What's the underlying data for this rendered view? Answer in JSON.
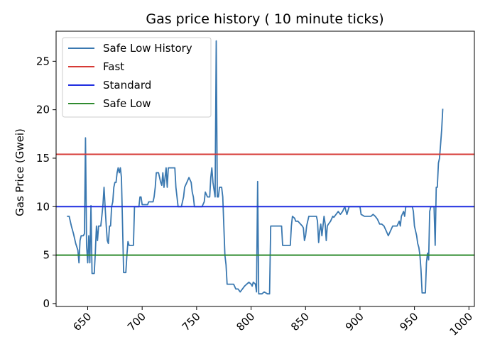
{
  "chart_data": {
    "type": "line",
    "title": "Gas price history ( 10 minute ticks)",
    "xlabel": "",
    "ylabel": "Gas Price (Gwei)",
    "xlim": [
      621,
      1005
    ],
    "ylim": [
      -0.3,
      28.1
    ],
    "xticks": [
      650,
      700,
      750,
      800,
      850,
      900,
      950,
      1000
    ],
    "yticks": [
      0,
      5,
      10,
      15,
      20,
      25
    ],
    "grid": false,
    "legend_position": "top-left",
    "colors": {
      "history": "#3a78b0",
      "fast": "#d63a35",
      "standard": "#1f2ee0",
      "safe_low": "#2f8b2f"
    },
    "series": [
      {
        "name": "Safe Low History",
        "kind": "line",
        "points": [
          [
            631,
            9
          ],
          [
            633,
            9
          ],
          [
            635,
            8
          ],
          [
            637,
            7.2
          ],
          [
            639,
            6.2
          ],
          [
            641,
            5.5
          ],
          [
            642,
            4.2
          ],
          [
            643,
            6.5
          ],
          [
            644,
            7
          ],
          [
            646,
            7
          ],
          [
            647,
            7.2
          ],
          [
            648,
            17.1
          ],
          [
            649,
            6
          ],
          [
            650,
            4.2
          ],
          [
            651,
            7
          ],
          [
            652,
            4.2
          ],
          [
            653,
            10.1
          ],
          [
            654,
            3.1
          ],
          [
            656,
            3.1
          ],
          [
            657,
            5.2
          ],
          [
            658,
            8
          ],
          [
            659,
            6.5
          ],
          [
            660,
            8
          ],
          [
            662,
            8
          ],
          [
            663,
            9
          ],
          [
            664,
            10.2
          ],
          [
            665,
            12
          ],
          [
            666,
            10
          ],
          [
            667,
            8
          ],
          [
            668,
            6.5
          ],
          [
            669,
            6.2
          ],
          [
            670,
            8
          ],
          [
            671,
            8
          ],
          [
            672,
            10
          ],
          [
            673,
            10.5
          ],
          [
            674,
            12
          ],
          [
            675,
            12.5
          ],
          [
            676,
            12.5
          ],
          [
            677,
            13.5
          ],
          [
            678,
            14
          ],
          [
            679,
            13.5
          ],
          [
            680,
            14
          ],
          [
            681,
            13
          ],
          [
            682,
            8
          ],
          [
            683,
            3.2
          ],
          [
            685,
            3.2
          ],
          [
            686,
            5
          ],
          [
            687,
            6.4
          ],
          [
            688,
            6
          ],
          [
            690,
            6
          ],
          [
            692,
            6
          ],
          [
            693,
            10
          ],
          [
            697,
            10
          ],
          [
            698,
            11
          ],
          [
            699,
            11
          ],
          [
            700,
            10.2
          ],
          [
            705,
            10.2
          ],
          [
            706,
            10.5
          ],
          [
            710,
            10.5
          ],
          [
            711,
            11
          ],
          [
            712,
            12
          ],
          [
            713,
            13.5
          ],
          [
            715,
            13.5
          ],
          [
            717,
            12.5
          ],
          [
            718,
            12.2
          ],
          [
            719,
            13.5
          ],
          [
            720,
            12
          ],
          [
            721,
            13
          ],
          [
            722,
            14
          ],
          [
            723,
            12
          ],
          [
            724,
            14
          ],
          [
            730,
            14
          ],
          [
            731,
            12
          ],
          [
            733,
            10
          ],
          [
            736,
            10
          ],
          [
            738,
            11
          ],
          [
            739,
            12
          ],
          [
            741,
            12.5
          ],
          [
            743,
            13
          ],
          [
            745,
            12.5
          ],
          [
            746,
            11.5
          ],
          [
            747,
            11
          ],
          [
            748,
            10
          ],
          [
            755,
            10
          ],
          [
            757,
            10.5
          ],
          [
            758,
            11.5
          ],
          [
            760,
            11
          ],
          [
            762,
            11
          ],
          [
            763,
            13
          ],
          [
            764,
            14
          ],
          [
            765,
            12.5
          ],
          [
            767,
            11
          ],
          [
            768,
            27.1
          ],
          [
            769,
            11
          ],
          [
            770,
            11
          ],
          [
            771,
            12
          ],
          [
            773,
            12
          ],
          [
            774,
            11
          ],
          [
            775,
            8
          ],
          [
            776,
            5
          ],
          [
            777,
            4
          ],
          [
            778,
            2
          ],
          [
            780,
            2
          ],
          [
            782,
            2
          ],
          [
            784,
            2
          ],
          [
            786,
            1.5
          ],
          [
            788,
            1.5
          ],
          [
            790,
            1.2
          ],
          [
            792,
            1.5
          ],
          [
            794,
            1.8
          ],
          [
            796,
            2
          ],
          [
            798,
            2.2
          ],
          [
            800,
            2
          ],
          [
            801,
            1.8
          ],
          [
            802,
            2.2
          ],
          [
            804,
            2
          ],
          [
            805,
            1.2
          ],
          [
            806,
            12.6
          ],
          [
            807,
            1
          ],
          [
            810,
            1
          ],
          [
            812,
            1.2
          ],
          [
            815,
            1
          ],
          [
            817,
            1
          ],
          [
            818,
            8
          ],
          [
            828,
            8
          ],
          [
            829,
            6
          ],
          [
            832,
            6
          ],
          [
            836,
            6
          ],
          [
            837,
            8
          ],
          [
            838,
            9
          ],
          [
            840,
            8.8
          ],
          [
            841,
            8.5
          ],
          [
            843,
            8.5
          ],
          [
            847,
            8
          ],
          [
            848,
            7.8
          ],
          [
            849,
            6.5
          ],
          [
            850,
            7
          ],
          [
            851,
            8
          ],
          [
            852,
            8.5
          ],
          [
            853,
            9
          ],
          [
            860,
            9
          ],
          [
            861,
            8.5
          ],
          [
            862,
            6.3
          ],
          [
            863,
            7.5
          ],
          [
            864,
            8.2
          ],
          [
            865,
            7
          ],
          [
            866,
            8
          ],
          [
            867,
            9
          ],
          [
            868,
            8.2
          ],
          [
            869,
            6.5
          ],
          [
            870,
            8
          ],
          [
            871,
            8.2
          ],
          [
            873,
            8.5
          ],
          [
            875,
            9
          ],
          [
            876,
            8.9
          ],
          [
            878,
            9.2
          ],
          [
            880,
            9.5
          ],
          [
            882,
            9.2
          ],
          [
            884,
            9.5
          ],
          [
            886,
            10
          ],
          [
            888,
            9.2
          ],
          [
            890,
            10
          ],
          [
            900,
            10
          ],
          [
            901,
            9.2
          ],
          [
            904,
            9
          ],
          [
            906,
            9
          ],
          [
            910,
            9
          ],
          [
            912,
            9.2
          ],
          [
            914,
            9
          ],
          [
            916,
            8.7
          ],
          [
            918,
            8.2
          ],
          [
            920,
            8.2
          ],
          [
            922,
            8
          ],
          [
            924,
            7.5
          ],
          [
            926,
            7
          ],
          [
            928,
            7.5
          ],
          [
            930,
            8
          ],
          [
            934,
            8
          ],
          [
            936,
            8.5
          ],
          [
            937,
            8
          ],
          [
            938,
            9
          ],
          [
            940,
            9.5
          ],
          [
            941,
            9
          ],
          [
            942,
            10
          ],
          [
            948,
            10
          ],
          [
            949,
            9.5
          ],
          [
            950,
            8
          ],
          [
            952,
            7
          ],
          [
            953,
            6.2
          ],
          [
            954,
            5.8
          ],
          [
            955,
            5
          ],
          [
            956,
            3.5
          ],
          [
            957,
            1.1
          ],
          [
            960,
            1.1
          ],
          [
            961,
            4.2
          ],
          [
            962,
            5.2
          ],
          [
            963,
            4.5
          ],
          [
            964,
            9.5
          ],
          [
            965,
            10
          ],
          [
            968,
            10
          ],
          [
            969,
            6
          ],
          [
            970,
            12
          ],
          [
            971,
            12
          ],
          [
            972,
            14.5
          ],
          [
            973,
            15
          ],
          [
            974,
            16.5
          ],
          [
            975,
            18
          ],
          [
            976,
            20.1
          ]
        ]
      },
      {
        "name": "Fast",
        "kind": "hline",
        "y": 15.4
      },
      {
        "name": "Standard",
        "kind": "hline",
        "y": 10
      },
      {
        "name": "Safe Low",
        "kind": "hline",
        "y": 5
      }
    ]
  }
}
